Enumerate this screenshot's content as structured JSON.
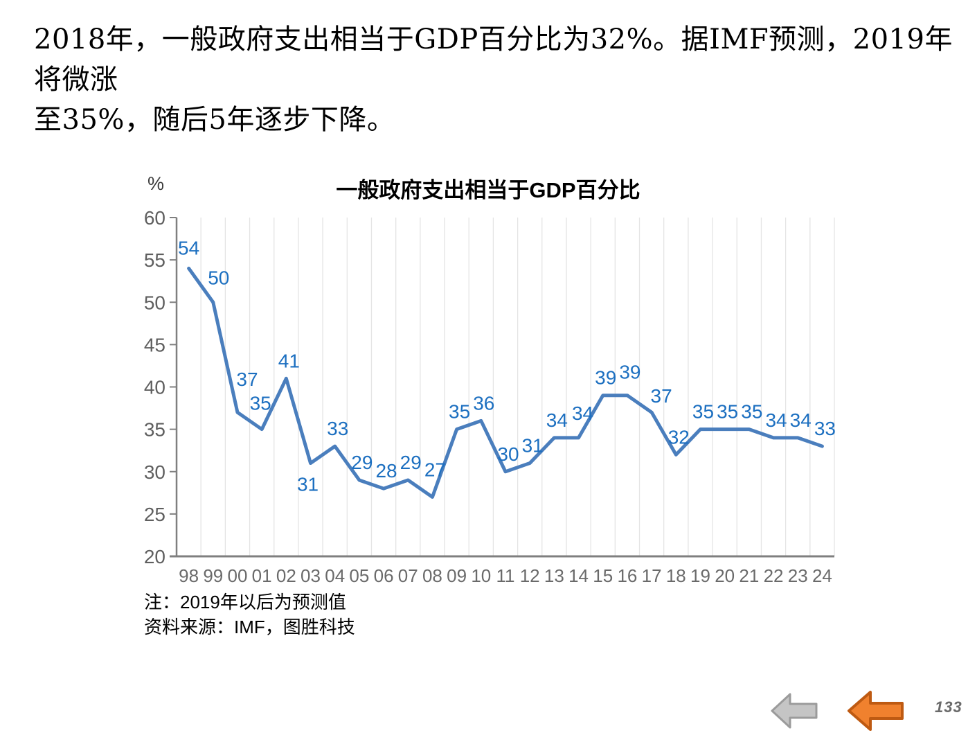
{
  "page": {
    "header_line1": "2018年，一般政府支出相当于GDP百分比为32%。据IMF预测，2019年将微涨",
    "header_line2": "至35%，随后5年逐步下降。",
    "page_number": "133"
  },
  "chart": {
    "unit_label": "%",
    "note_line1": "注：2019年以后为预测值",
    "note_line2": "资料来源：IMF，图胜科技"
  },
  "chart_data": {
    "type": "line",
    "title": "一般政府支出相当于GDP百分比",
    "ylabel": "%",
    "xlabel": "",
    "categories": [
      "98",
      "99",
      "00",
      "01",
      "02",
      "03",
      "04",
      "05",
      "06",
      "07",
      "08",
      "09",
      "10",
      "11",
      "12",
      "13",
      "14",
      "15",
      "16",
      "17",
      "18",
      "19",
      "20",
      "21",
      "22",
      "23",
      "24"
    ],
    "values": [
      54,
      50,
      37,
      35,
      41,
      31,
      33,
      29,
      28,
      29,
      27,
      35,
      36,
      30,
      31,
      34,
      34,
      39,
      39,
      37,
      32,
      35,
      35,
      35,
      34,
      34,
      33
    ],
    "ylim": [
      20,
      60
    ],
    "ytick_step": 5,
    "grid": "vertical-only",
    "legend": "none",
    "data_labels": true,
    "colors": {
      "line": "#4A7EBD",
      "data_label": "#1C6FC0",
      "axis": "#7F7F7F",
      "gridline": "#E4E4E4",
      "x_tick_label": "#6A6A6A",
      "y_tick_label": "#5F5F5F"
    }
  },
  "nav": {
    "gray_arrow": {
      "direction": "left",
      "fill": "#C5C5C5",
      "stroke": "#9B9B9B"
    },
    "orange_arrow": {
      "direction": "left",
      "fill": "#F0812E",
      "stroke": "#BE5A12"
    }
  }
}
